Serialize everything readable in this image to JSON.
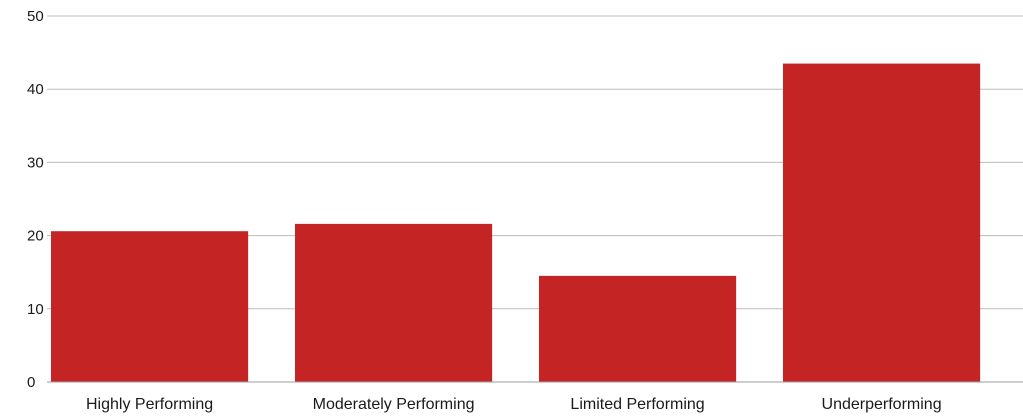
{
  "chart_data": {
    "type": "bar",
    "title": "",
    "xlabel": "",
    "ylabel": "",
    "categories": [
      "Highly Performing",
      "Moderately Performing",
      "Limited Performing",
      "Underperforming"
    ],
    "values": [
      20.6,
      21.6,
      14.5,
      43.5
    ],
    "ylim": [
      0,
      50
    ],
    "yticks": [
      0,
      10,
      20,
      30,
      40,
      50
    ],
    "grid": true,
    "legend": "none",
    "colors": {
      "bar": "#c42424",
      "grid": "#bdbdbd",
      "text": "#1a1a1a"
    }
  }
}
